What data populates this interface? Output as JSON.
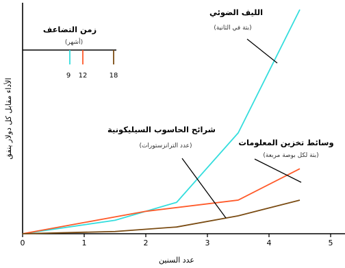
{
  "chart_data": {
    "type": "line",
    "xlabel": "عدد السنين",
    "ylabel": "الأداء مقابل كل دولار ينفق",
    "xlim": [
      0,
      5.3
    ],
    "ylim": [
      0,
      1
    ],
    "x_ticks": [
      "0",
      "1",
      "2",
      "3",
      "4",
      "5"
    ],
    "grid": false,
    "series": [
      {
        "name": "الليف الضوئي",
        "unit": "(بتة في الثانية)",
        "color": "#33dddd",
        "x": [
          0,
          1.5,
          2.5,
          3.5,
          4.5
        ],
        "y": [
          0,
          0.06,
          0.14,
          0.45,
          1.0
        ]
      },
      {
        "name": "وسائط تخزين المعلومات",
        "unit": "(بتة لكل بوصة مربعة)",
        "color": "#ff5a2a",
        "x": [
          0,
          1,
          2,
          3.5,
          4.5
        ],
        "y": [
          0,
          0.05,
          0.1,
          0.15,
          0.29
        ]
      },
      {
        "name": "شرائح الحاسوب السيليكونية",
        "unit": "(عدد الترانزستورات)",
        "color": "#7a4b12",
        "x": [
          0,
          1.5,
          2.5,
          3.5,
          4.5
        ],
        "y": [
          0,
          0.01,
          0.03,
          0.08,
          0.15
        ]
      }
    ],
    "inset": {
      "title": "زمن التضاعف",
      "subtitle": "(أشهر)",
      "ticks": [
        {
          "label": "9",
          "color": "#33dddd"
        },
        {
          "label": "12",
          "color": "#ff5a2a"
        },
        {
          "label": "18",
          "color": "#7a4b12"
        }
      ]
    }
  }
}
